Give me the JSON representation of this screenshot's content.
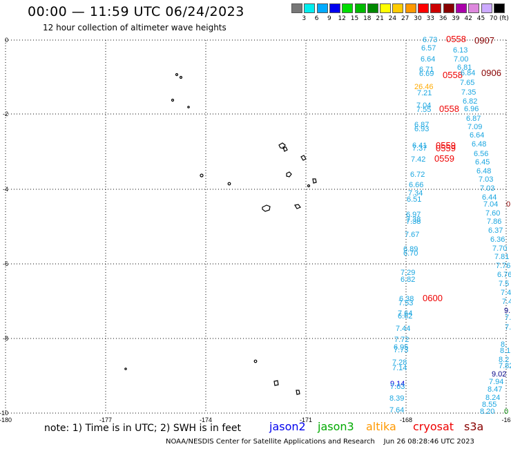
{
  "header": {
    "title": "00:00 — 11:59 UTC 06/24/2023",
    "subtitle": "12 hour collection of altimeter wave heights"
  },
  "legend": {
    "colors": [
      "#777777",
      "#00eeee",
      "#00aaff",
      "#0000ee",
      "#00dd00",
      "#00bb00",
      "#008800",
      "#ffff00",
      "#ffcc00",
      "#ff9900",
      "#ff0000",
      "#cc0000",
      "#880000",
      "#aa00aa",
      "#dd88dd",
      "#ccaaff",
      "#000000"
    ],
    "labels": [
      "3",
      "6",
      "9",
      "12",
      "15",
      "18",
      "21",
      "24",
      "27",
      "30",
      "33",
      "36",
      "39",
      "42",
      "45",
      "70 (ft)"
    ]
  },
  "axes": {
    "y_ticks": [
      "0",
      "-2",
      "-4",
      "-6",
      "-8",
      "-10"
    ],
    "x_ticks": [
      "-180",
      "-177",
      "-174",
      "-171",
      "-168",
      "-16"
    ]
  },
  "wave_labels": [
    {
      "t": "6.73",
      "c": "#1aa6e0"
    },
    {
      "t": "0558",
      "c": "#ee0000"
    },
    {
      "t": "0907",
      "c": "#880000"
    },
    {
      "t": "6.57",
      "c": "#1aa6e0"
    },
    {
      "t": "6.13",
      "c": "#1aa6e0"
    },
    {
      "t": "6.64",
      "c": "#1aa6e0"
    },
    {
      "t": "7.00",
      "c": "#1aa6e0"
    },
    {
      "t": "6.81",
      "c": "#1aa6e0"
    },
    {
      "t": "6.71",
      "c": "#1aa6e0"
    },
    {
      "t": "6.69",
      "c": "#1aa6e0"
    },
    {
      "t": "0558",
      "c": "#ee0000"
    },
    {
      "t": "6.84",
      "c": "#1aa6e0"
    },
    {
      "t": "0906",
      "c": "#880000"
    },
    {
      "t": "7.65",
      "c": "#1aa6e0"
    },
    {
      "t": "26.46",
      "c": "#ffaa00"
    },
    {
      "t": "7.21",
      "c": "#1aa6e0"
    },
    {
      "t": "7.35",
      "c": "#1aa6e0"
    },
    {
      "t": "6.82",
      "c": "#1aa6e0"
    },
    {
      "t": "7.04",
      "c": "#1aa6e0"
    },
    {
      "t": "7.55",
      "c": "#1aa6e0"
    },
    {
      "t": "0558",
      "c": "#ee0000"
    },
    {
      "t": "6.96",
      "c": "#1aa6e0"
    },
    {
      "t": "6.87",
      "c": "#1aa6e0"
    },
    {
      "t": "6.87",
      "c": "#1aa6e0"
    },
    {
      "t": "7.09",
      "c": "#1aa6e0"
    },
    {
      "t": "6.93",
      "c": "#1aa6e0"
    },
    {
      "t": "6.64",
      "c": "#1aa6e0"
    },
    {
      "t": "6.41",
      "c": "#1aa6e0"
    },
    {
      "t": "0559",
      "c": "#ee0000"
    },
    {
      "t": "6.48",
      "c": "#1aa6e0"
    },
    {
      "t": "7.37",
      "c": "#1aa6e0"
    },
    {
      "t": "0559",
      "c": "#ee0000"
    },
    {
      "t": "6.56",
      "c": "#1aa6e0"
    },
    {
      "t": "7.42",
      "c": "#1aa6e0"
    },
    {
      "t": "0559",
      "c": "#ee0000"
    },
    {
      "t": "6.45",
      "c": "#1aa6e0"
    },
    {
      "t": "6.48",
      "c": "#1aa6e0"
    },
    {
      "t": "6.72",
      "c": "#1aa6e0"
    },
    {
      "t": "7.03",
      "c": "#1aa6e0"
    },
    {
      "t": "6.66",
      "c": "#1aa6e0"
    },
    {
      "t": "7.03",
      "c": "#1aa6e0"
    },
    {
      "t": "7.34",
      "c": "#1aa6e0"
    },
    {
      "t": "6.44",
      "c": "#1aa6e0"
    },
    {
      "t": "6.51",
      "c": "#1aa6e0"
    },
    {
      "t": "7.04",
      "c": "#1aa6e0"
    },
    {
      "t": "0",
      "c": "#880000"
    },
    {
      "t": "7.60",
      "c": "#1aa6e0"
    },
    {
      "t": "6.97",
      "c": "#1aa6e0"
    },
    {
      "t": "7.38",
      "c": "#1aa6e0"
    },
    {
      "t": "7.86",
      "c": "#1aa6e0"
    },
    {
      "t": "7.38",
      "c": "#1aa6e0"
    },
    {
      "t": "6.37",
      "c": "#1aa6e0"
    },
    {
      "t": "7.67",
      "c": "#1aa6e0"
    },
    {
      "t": "6.36",
      "c": "#1aa6e0"
    },
    {
      "t": "7.70",
      "c": "#1aa6e0"
    },
    {
      "t": "6.89",
      "c": "#1aa6e0"
    },
    {
      "t": "6.70",
      "c": "#1aa6e0"
    },
    {
      "t": "7.81",
      "c": "#1aa6e0"
    },
    {
      "t": "7.76",
      "c": "#1aa6e0"
    },
    {
      "t": "7.29",
      "c": "#1aa6e0"
    },
    {
      "t": "6.76",
      "c": "#1aa6e0"
    },
    {
      "t": "6.82",
      "c": "#1aa6e0"
    },
    {
      "t": "7.5",
      "c": "#1aa6e0"
    },
    {
      "t": "7.4",
      "c": "#1aa6e0"
    },
    {
      "t": "6.38",
      "c": "#1aa6e0"
    },
    {
      "t": "0600",
      "c": "#ee0000"
    },
    {
      "t": "7.53",
      "c": "#1aa6e0"
    },
    {
      "t": "7.4",
      "c": "#1aa6e0"
    },
    {
      "t": "9.",
      "c": "#000088"
    },
    {
      "t": "7.64",
      "c": "#1aa6e0"
    },
    {
      "t": "6.62",
      "c": "#1aa6e0"
    },
    {
      "t": "7.",
      "c": "#1aa6e0"
    },
    {
      "t": "7.44",
      "c": "#1aa6e0"
    },
    {
      "t": "7.",
      "c": "#1aa6e0"
    },
    {
      "t": "7.72",
      "c": "#1aa6e0"
    },
    {
      "t": "8.",
      "c": "#1aa6e0"
    },
    {
      "t": "6.95",
      "c": "#1aa6e0"
    },
    {
      "t": "7.73",
      "c": "#1aa6e0"
    },
    {
      "t": "8.1",
      "c": "#1aa6e0"
    },
    {
      "t": "8.2",
      "c": "#1aa6e0"
    },
    {
      "t": "7.28",
      "c": "#1aa6e0"
    },
    {
      "t": "7.14",
      "c": "#1aa6e0"
    },
    {
      "t": "7.82",
      "c": "#1aa6e0"
    },
    {
      "t": "9.02",
      "c": "#000088"
    },
    {
      "t": "9.14",
      "c": "#0000dd"
    },
    {
      "t": "7.94",
      "c": "#1aa6e0"
    },
    {
      "t": "7.63",
      "c": "#1aa6e0"
    },
    {
      "t": "8.47",
      "c": "#1aa6e0"
    },
    {
      "t": "8.24",
      "c": "#1aa6e0"
    },
    {
      "t": "8.39",
      "c": "#1aa6e0"
    },
    {
      "t": "8.55",
      "c": "#1aa6e0"
    },
    {
      "t": "7.64",
      "c": "#1aa6e0"
    },
    {
      "t": "8.20",
      "c": "#1aa6e0"
    },
    {
      "t": "0",
      "c": "#008800"
    }
  ],
  "footer": {
    "note": "note:  1) Time is in UTC;  2) SWH is in feet",
    "satellites": [
      {
        "name": "jason2",
        "color": "#0000ee"
      },
      {
        "name": "jason3",
        "color": "#00aa00"
      },
      {
        "name": "altika",
        "color": "#ff9900"
      },
      {
        "name": "cryosat",
        "color": "#ee0000"
      },
      {
        "name": "s3a",
        "color": "#880000"
      }
    ],
    "credit": "NOAA/NESDIS Center for Satellite Applications and Research    Jun 26 08:28:46 UTC 2023"
  }
}
